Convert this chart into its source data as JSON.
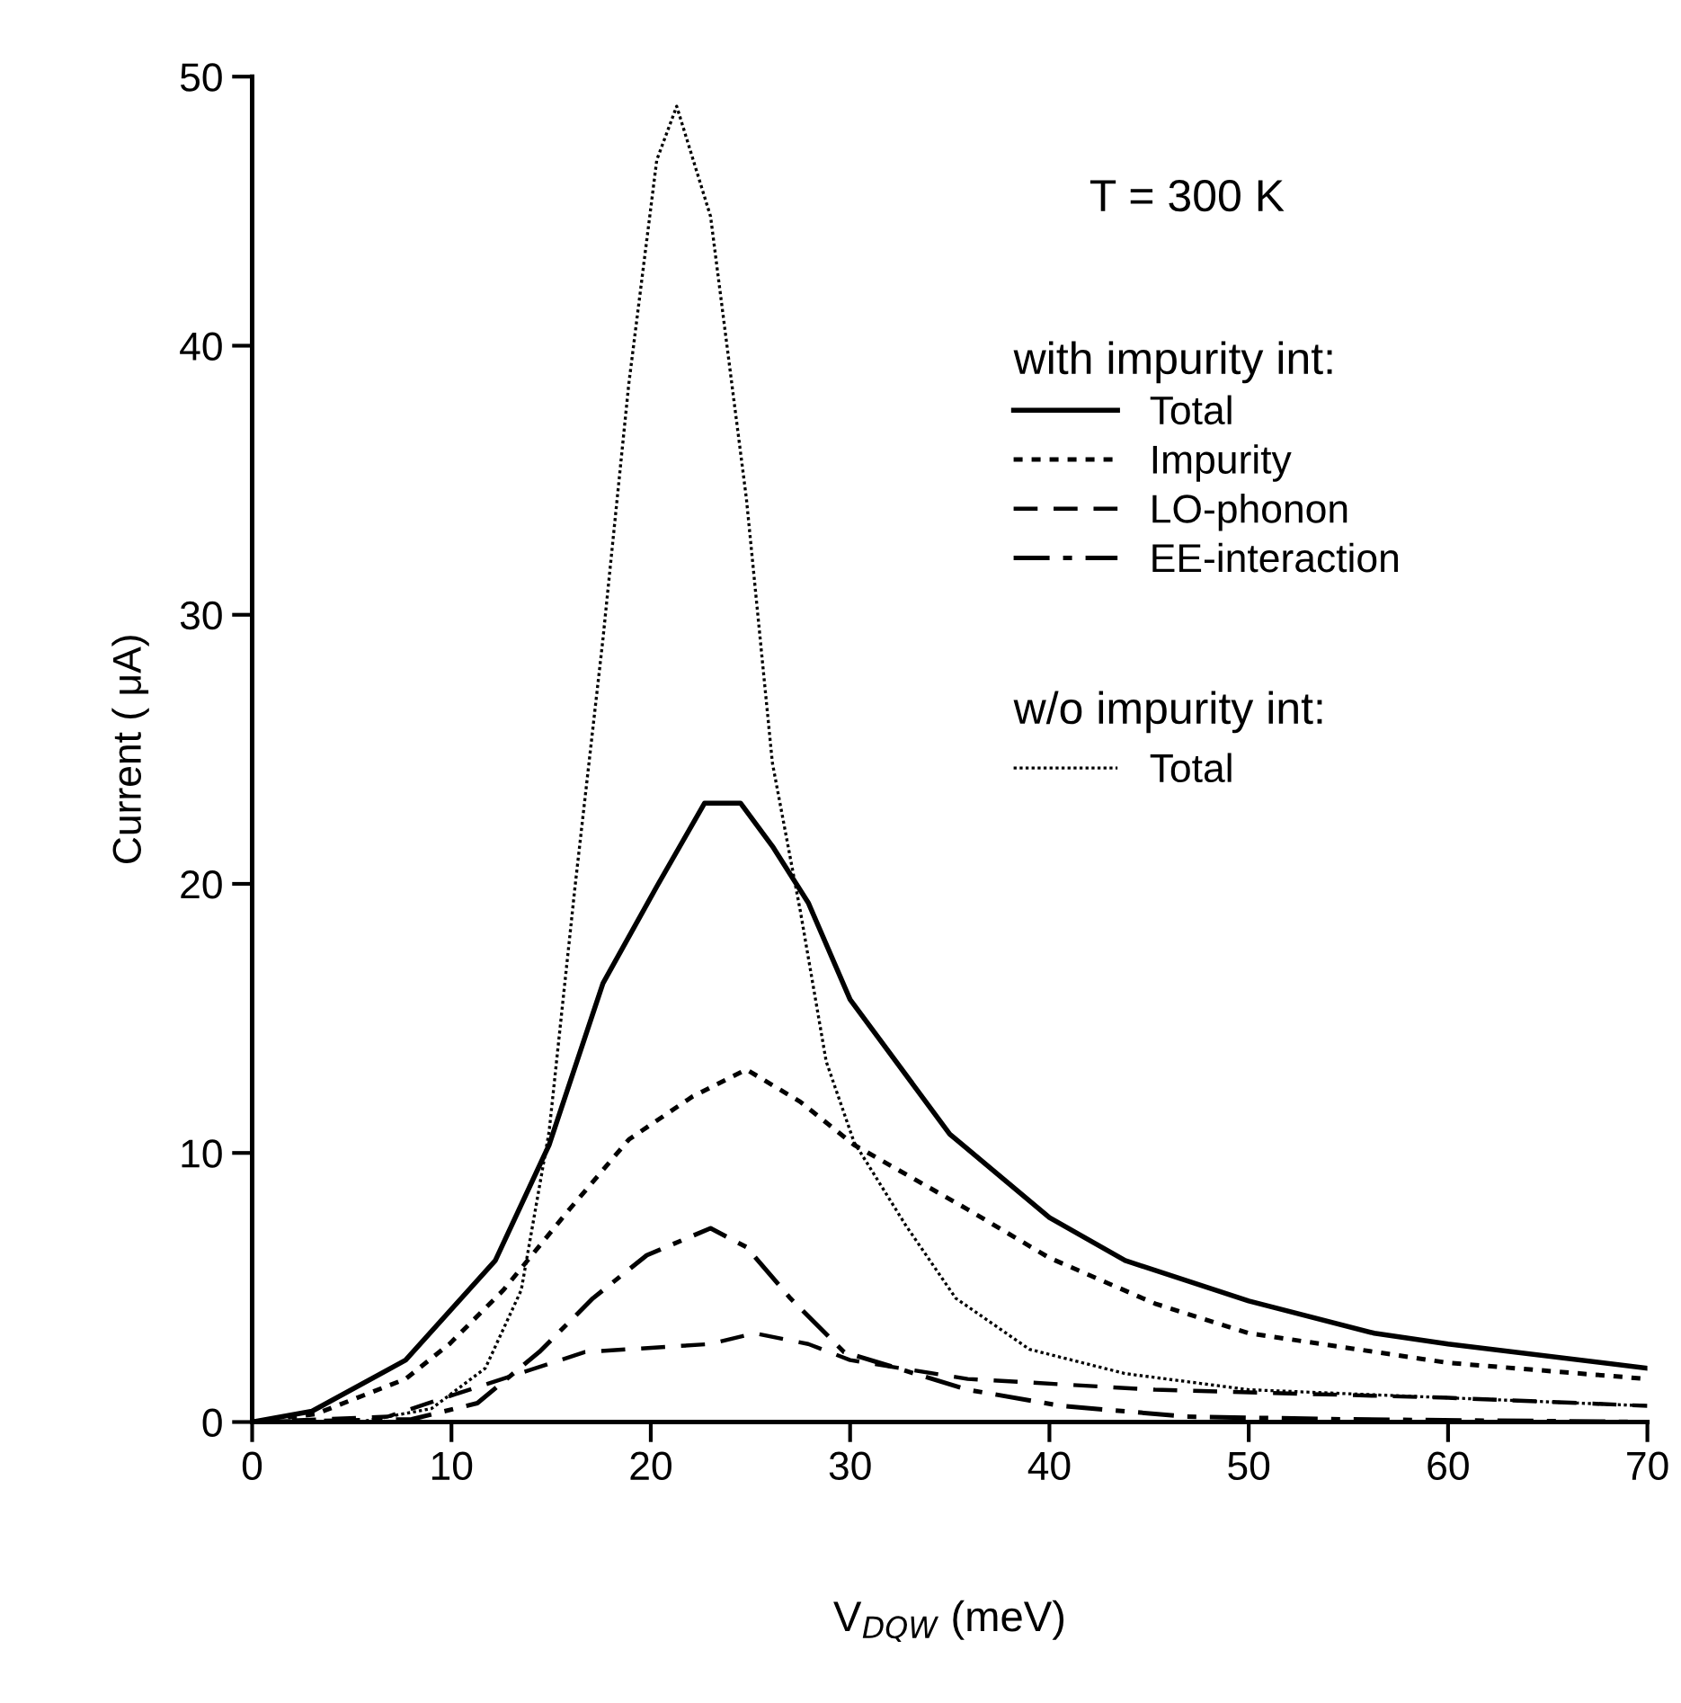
{
  "chart_data": {
    "type": "line",
    "xlabel": "V$_{DQW}$ (meV)",
    "ylabel": "Current ( μA)",
    "xlim": [
      0,
      70
    ],
    "ylim": [
      0,
      50
    ],
    "xticks": [
      0,
      10,
      20,
      30,
      40,
      50,
      60,
      70
    ],
    "yticks": [
      0,
      10,
      20,
      30,
      40,
      50
    ],
    "grid": false,
    "legend": "top right",
    "legend_title": "with impurity int:",
    "marker": "none",
    "annotations": [
      "T = 300 K",
      "w/o impurity int:"
    ],
    "series": [
      {
        "name": "Total",
        "color": "#000000",
        "line_style": "solid",
        "x": [
          0,
          3,
          7.7,
          12.2,
          14.9,
          17.6,
          20.3,
          22.7,
          24.5,
          26.1,
          27.9,
          30,
          35,
          40,
          43.8,
          50,
          56.3,
          60,
          70
        ],
        "values": [
          0,
          0.4,
          2.3,
          6.0,
          10.3,
          16.3,
          19.9,
          23.0,
          23.0,
          21.4,
          19.3,
          15.7,
          10.7,
          7.6,
          6.0,
          4.5,
          3.3,
          2.9,
          2.0
        ]
      },
      {
        "name": "Impurity",
        "color": "#000000",
        "line_style": "dotted",
        "x": [
          0,
          3.2,
          7.7,
          9.9,
          12.6,
          15.8,
          18.9,
          22.1,
          24.8,
          27.5,
          30.2,
          35.9,
          40,
          45.3,
          50,
          60,
          70
        ],
        "values": [
          0,
          0.3,
          1.6,
          2.9,
          4.9,
          7.8,
          10.5,
          12.1,
          13.1,
          11.9,
          10.3,
          7.9,
          6.1,
          4.4,
          3.3,
          2.2,
          1.6
        ]
      },
      {
        "name": "LO-phonon",
        "color": "#000000",
        "line_style": "dashed",
        "x": [
          0,
          6.8,
          11.3,
          16.7,
          23,
          25.2,
          27.9,
          30,
          35.9,
          45.3,
          60,
          70
        ],
        "values": [
          0,
          0.2,
          1.3,
          2.6,
          2.9,
          3.3,
          2.9,
          2.3,
          1.6,
          1.2,
          0.9,
          0.6
        ]
      },
      {
        "name": "EE-interaction",
        "color": "#000000",
        "line_style": "dashdot",
        "x": [
          0,
          8,
          11.3,
          14.4,
          17.1,
          19.8,
          23,
          24.8,
          27,
          29.7,
          32.8,
          35.9,
          40.6,
          46.9,
          54.7,
          70
        ],
        "values": [
          0,
          0.1,
          0.7,
          2.6,
          4.6,
          6.2,
          7.2,
          6.5,
          4.6,
          2.6,
          1.9,
          1.2,
          0.6,
          0.2,
          0.1,
          0
        ]
      },
      {
        "name": "Total",
        "color": "#000000",
        "line_style": "dotted_fine",
        "x": [
          0,
          5.4,
          9.0,
          11.7,
          13.5,
          14.9,
          16.2,
          17.6,
          18.9,
          20.3,
          21.3,
          23.0,
          24.8,
          26.1,
          27.5,
          28.8,
          30.2,
          32.8,
          35.3,
          39,
          43.8,
          50,
          60,
          70
        ],
        "values": [
          0,
          0,
          0.5,
          2.0,
          4.9,
          10.8,
          19.9,
          29.1,
          38.6,
          46.9,
          48.9,
          44.8,
          34.3,
          24.5,
          19.0,
          13.4,
          10.4,
          7.3,
          4.6,
          2.7,
          1.8,
          1.2,
          0.9,
          0.6
        ]
      }
    ]
  }
}
